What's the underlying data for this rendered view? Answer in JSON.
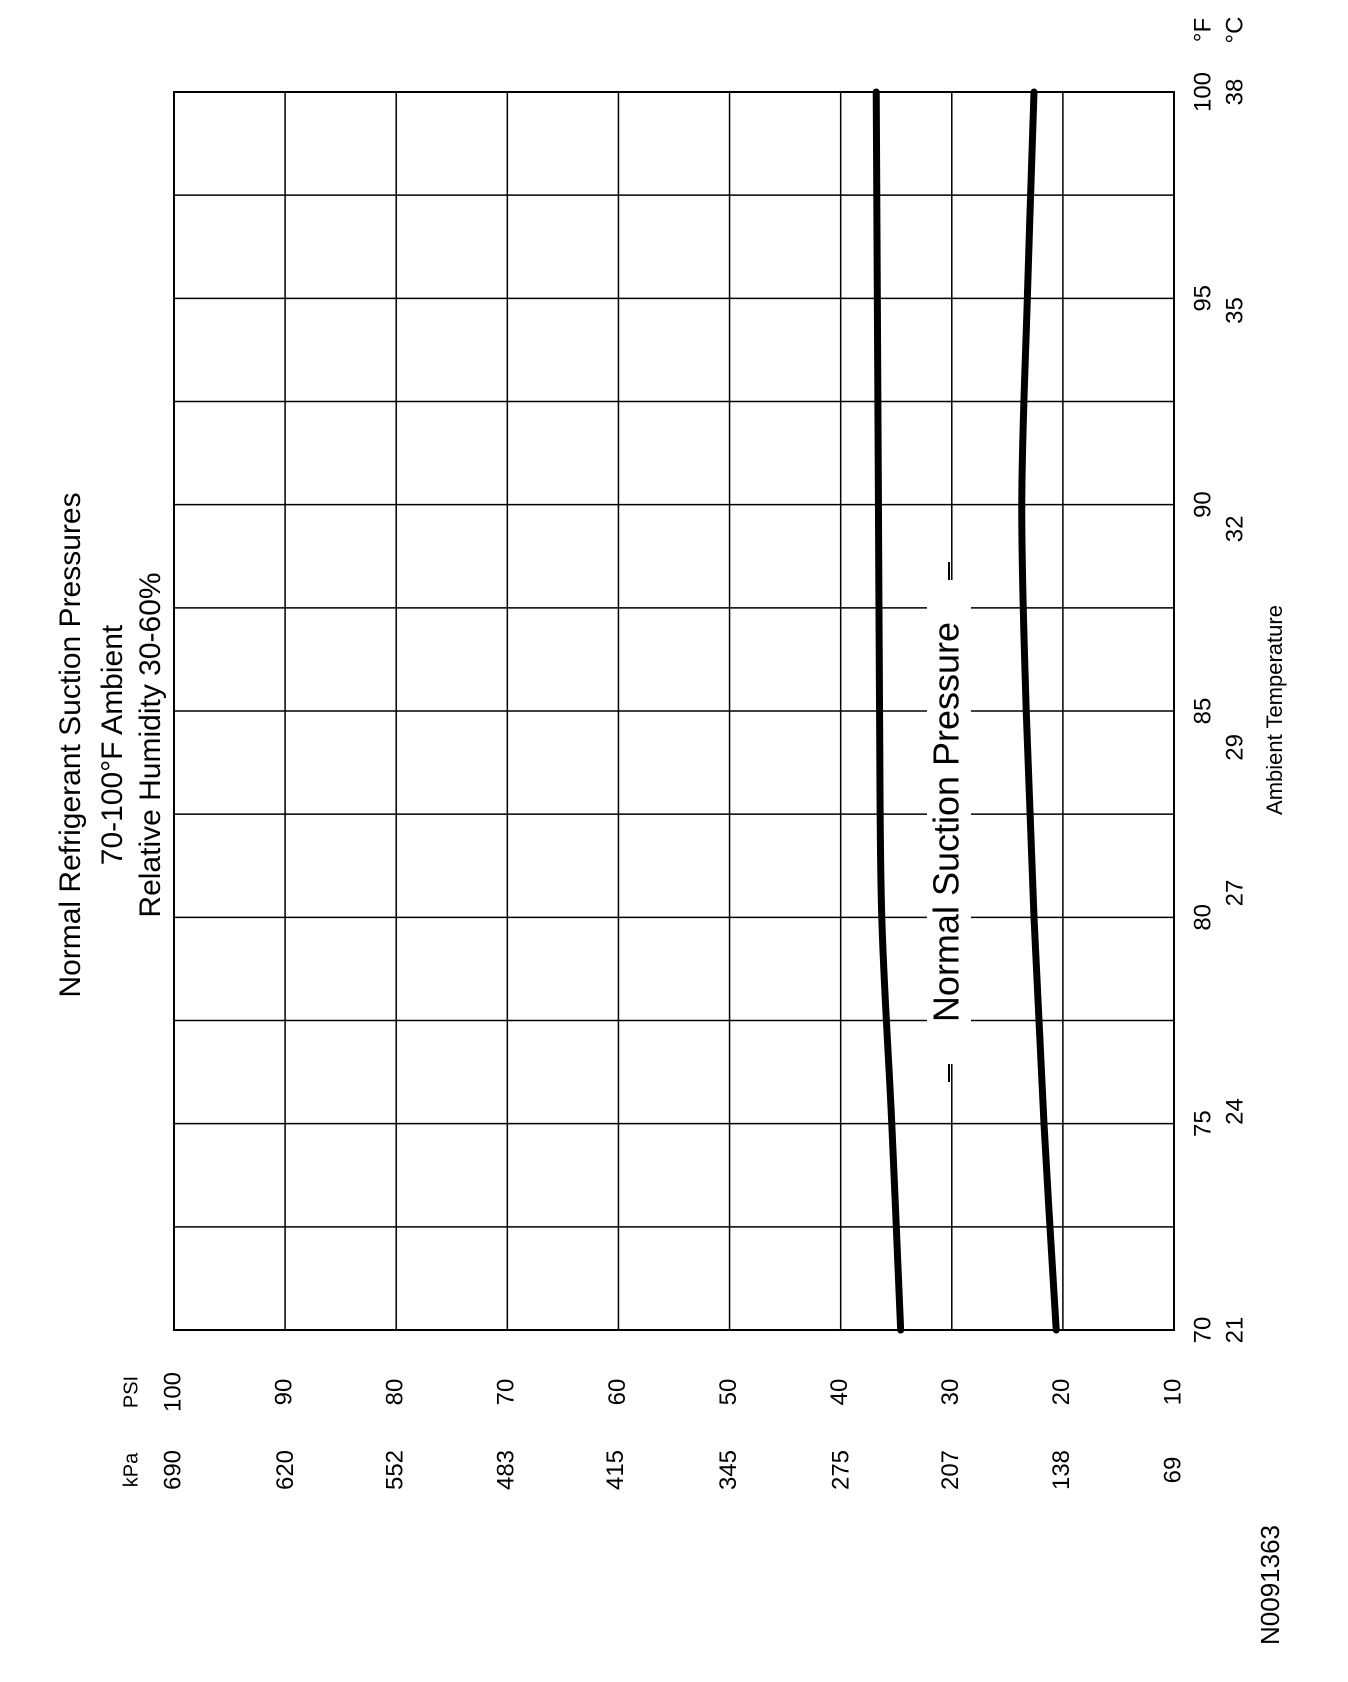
{
  "chart_data": {
    "type": "line",
    "title": "Normal Refrigerant  Suction  Pressures",
    "subtitle": [
      "70-100°F Ambient",
      "Relative Humidity 30-60%"
    ],
    "x_label": "Ambient Temperature",
    "x_unit": "°F",
    "x2_unit": "°C",
    "y_unit": "PSI",
    "y2_unit": "kPa",
    "annotation": "Normal Suction Pressure",
    "figure_id": "N0091363",
    "x": [
      70,
      75,
      80,
      85,
      90,
      95,
      100
    ],
    "series": [
      {
        "color": "#000000",
        "values": [
          34.6,
          35.4,
          36.3,
          36.5,
          36.6,
          36.7,
          36.8
        ]
      },
      {
        "color": "#000000",
        "values": [
          20.6,
          21.7,
          22.6,
          23.3,
          23.7,
          23.2,
          22.6
        ]
      }
    ],
    "xlim": [
      70,
      100
    ],
    "xticks": [
      70,
      75,
      80,
      85,
      90,
      95,
      100
    ],
    "minor_xticks": [
      72.5,
      77.5,
      82.5,
      87.5,
      92.5,
      97.5
    ],
    "x2lim": [
      21,
      38
    ],
    "x2ticks": [
      21,
      24,
      27,
      29,
      32,
      35,
      38
    ],
    "ylim": [
      10,
      100
    ],
    "yticks": [
      10,
      20,
      30,
      40,
      50,
      60,
      70,
      80,
      90,
      100
    ],
    "y2lim": [
      69,
      690
    ],
    "y2ticks": [
      69,
      138,
      207,
      275,
      345,
      415,
      483,
      552,
      620,
      690
    ],
    "grid": true
  }
}
